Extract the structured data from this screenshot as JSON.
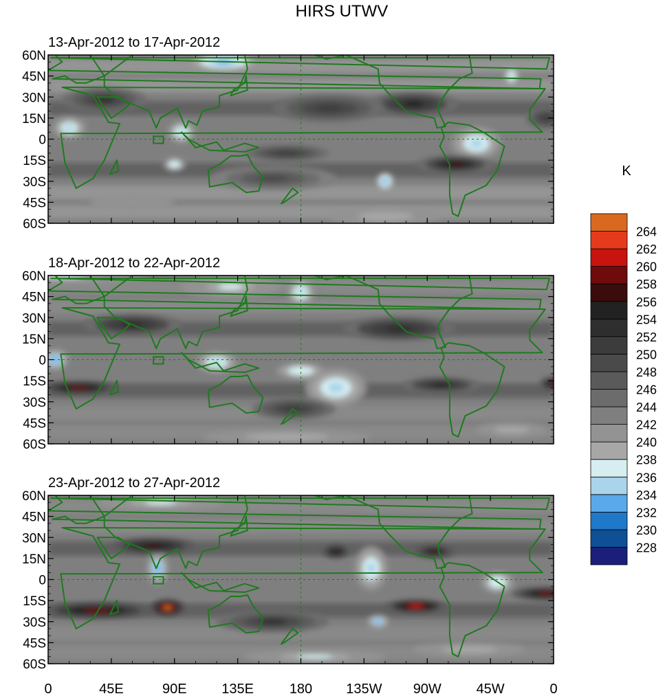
{
  "chart_data": {
    "type": "heatmap",
    "title": "HIRS UTWV",
    "units_label": "K",
    "lat_ticks": [
      "60N",
      "45N",
      "30N",
      "15N",
      "0",
      "15S",
      "30S",
      "45S",
      "60S"
    ],
    "lon_ticks": [
      "0",
      "45E",
      "90E",
      "135E",
      "180",
      "135W",
      "90W",
      "45W",
      "0"
    ],
    "lat_values": [
      60,
      45,
      30,
      15,
      0,
      -15,
      -30,
      -45,
      -60
    ],
    "lon_values": [
      0,
      45,
      90,
      135,
      180,
      225,
      270,
      315,
      360
    ],
    "lat_range": [
      -60,
      60
    ],
    "lon_range": [
      0,
      360
    ],
    "colorbar": {
      "levels": [
        "228",
        "230",
        "232",
        "234",
        "236",
        "238",
        "240",
        "242",
        "244",
        "246",
        "248",
        "250",
        "252",
        "254",
        "256",
        "258",
        "260",
        "262",
        "264"
      ],
      "colors": [
        "#1b1f7a",
        "#0f4f96",
        "#1f78c8",
        "#5aa9ea",
        "#a9d4ea",
        "#d6eef0",
        "#a7a7a7",
        "#939393",
        "#7f7f7f",
        "#6c6c6c",
        "#5a5a5a",
        "#4a4a4a",
        "#3c3c3c",
        "#2e2e2e",
        "#222222",
        "#3a0c0c",
        "#6e0b0b",
        "#c8140e",
        "#e63a1c",
        "#d9691f"
      ]
    },
    "panels": [
      {
        "label": "13-Apr-2012 to 17-Apr-2012",
        "base": 242,
        "blobs": [
          {
            "lon": 125,
            "lat": 55,
            "rx": 22,
            "ry": 6,
            "v": 233
          },
          {
            "lon": 15,
            "lat": 8,
            "rx": 12,
            "ry": 8,
            "v": 234
          },
          {
            "lon": 95,
            "lat": 5,
            "rx": 10,
            "ry": 8,
            "v": 235
          },
          {
            "lon": 305,
            "lat": -3,
            "rx": 18,
            "ry": 12,
            "v": 234
          },
          {
            "lon": 240,
            "lat": -30,
            "rx": 6,
            "ry": 6,
            "v": 233
          },
          {
            "lon": 330,
            "lat": 45,
            "rx": 6,
            "ry": 8,
            "v": 234
          },
          {
            "lon": 90,
            "lat": -18,
            "rx": 8,
            "ry": 5,
            "v": 236
          },
          {
            "lon": 260,
            "lat": 25,
            "rx": 32,
            "ry": 9,
            "v": 255
          },
          {
            "lon": 40,
            "lat": 28,
            "rx": 30,
            "ry": 9,
            "v": 252
          },
          {
            "lon": 290,
            "lat": -18,
            "rx": 28,
            "ry": 7,
            "v": 256
          },
          {
            "lon": 160,
            "lat": -28,
            "rx": 45,
            "ry": 9,
            "v": 249
          },
          {
            "lon": 200,
            "lat": 22,
            "rx": 40,
            "ry": 10,
            "v": 251
          },
          {
            "lon": 60,
            "lat": -45,
            "rx": 30,
            "ry": 6,
            "v": 240
          },
          {
            "lon": 240,
            "lat": -55,
            "rx": 40,
            "ry": 6,
            "v": 238
          },
          {
            "lon": 170,
            "lat": -10,
            "rx": 30,
            "ry": 6,
            "v": 250
          },
          {
            "lon": 355,
            "lat": 15,
            "rx": 15,
            "ry": 8,
            "v": 250
          }
        ]
      },
      {
        "label": "18-Apr-2012 to 22-Apr-2012",
        "base": 243,
        "blobs": [
          {
            "lon": 10,
            "lat": 60,
            "rx": 60,
            "ry": 6,
            "v": 237
          },
          {
            "lon": 130,
            "lat": 52,
            "rx": 35,
            "ry": 8,
            "v": 237
          },
          {
            "lon": 180,
            "lat": 48,
            "rx": 10,
            "ry": 10,
            "v": 234
          },
          {
            "lon": 5,
            "lat": 0,
            "rx": 10,
            "ry": 8,
            "v": 233
          },
          {
            "lon": 120,
            "lat": -2,
            "rx": 15,
            "ry": 8,
            "v": 234
          },
          {
            "lon": 205,
            "lat": -20,
            "rx": 22,
            "ry": 14,
            "v": 234
          },
          {
            "lon": 180,
            "lat": -8,
            "rx": 18,
            "ry": 6,
            "v": 236
          },
          {
            "lon": 22,
            "lat": -20,
            "rx": 28,
            "ry": 5,
            "v": 258
          },
          {
            "lon": 360,
            "lat": -17,
            "rx": 10,
            "ry": 5,
            "v": 258
          },
          {
            "lon": 280,
            "lat": -18,
            "rx": 28,
            "ry": 6,
            "v": 254
          },
          {
            "lon": 60,
            "lat": 25,
            "rx": 35,
            "ry": 8,
            "v": 253
          },
          {
            "lon": 250,
            "lat": 22,
            "rx": 40,
            "ry": 9,
            "v": 253
          },
          {
            "lon": 175,
            "lat": -35,
            "rx": 30,
            "ry": 8,
            "v": 251
          },
          {
            "lon": 170,
            "lat": -55,
            "rx": 60,
            "ry": 5,
            "v": 238
          },
          {
            "lon": 330,
            "lat": -50,
            "rx": 25,
            "ry": 5,
            "v": 238
          }
        ]
      },
      {
        "label": "23-Apr-2012 to 27-Apr-2012",
        "base": 243,
        "blobs": [
          {
            "lon": 80,
            "lat": 55,
            "rx": 45,
            "ry": 6,
            "v": 237
          },
          {
            "lon": 230,
            "lat": 8,
            "rx": 12,
            "ry": 16,
            "v": 234
          },
          {
            "lon": 78,
            "lat": 8,
            "rx": 8,
            "ry": 12,
            "v": 233
          },
          {
            "lon": 235,
            "lat": -30,
            "rx": 8,
            "ry": 5,
            "v": 233
          },
          {
            "lon": 320,
            "lat": -2,
            "rx": 12,
            "ry": 8,
            "v": 236
          },
          {
            "lon": 85,
            "lat": -20,
            "rx": 12,
            "ry": 6,
            "v": 264
          },
          {
            "lon": 35,
            "lat": -22,
            "rx": 40,
            "ry": 6,
            "v": 258
          },
          {
            "lon": 262,
            "lat": -19,
            "rx": 22,
            "ry": 5,
            "v": 261
          },
          {
            "lon": 355,
            "lat": -10,
            "rx": 25,
            "ry": 5,
            "v": 258
          },
          {
            "lon": 75,
            "lat": 24,
            "rx": 30,
            "ry": 6,
            "v": 257
          },
          {
            "lon": 205,
            "lat": 20,
            "rx": 10,
            "ry": 5,
            "v": 257
          },
          {
            "lon": 275,
            "lat": 20,
            "rx": 15,
            "ry": 5,
            "v": 256
          },
          {
            "lon": 160,
            "lat": -30,
            "rx": 40,
            "ry": 8,
            "v": 252
          },
          {
            "lon": 190,
            "lat": -55,
            "rx": 50,
            "ry": 5,
            "v": 237
          },
          {
            "lon": 300,
            "lat": -50,
            "rx": 40,
            "ry": 5,
            "v": 238
          }
        ]
      }
    ]
  }
}
